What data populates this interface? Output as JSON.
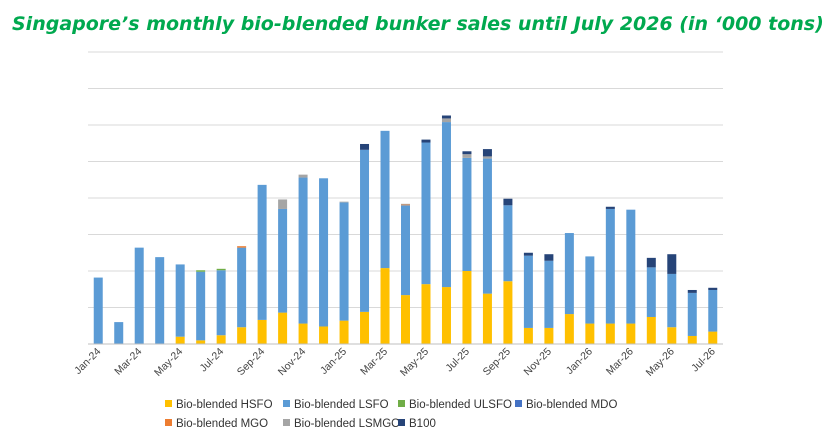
{
  "chart_data": {
    "type": "bar",
    "stacked": true,
    "title": "Singapore’s monthly bio-blended bunker sales until July 2026 (in ‘000 tons)",
    "xlabel": "",
    "ylabel": "",
    "ylim": [
      0,
      400
    ],
    "grid": true,
    "legend_position": "bottom",
    "categories": [
      "Jan-24",
      "Feb-24",
      "Mar-24",
      "Apr-24",
      "May-24",
      "Jun-24",
      "Jul-24",
      "Aug-24",
      "Sep-24",
      "Oct-24",
      "Nov-24",
      "Dec-24",
      "Jan-25",
      "Feb-25",
      "Mar-25",
      "Apr-25",
      "May-25",
      "Jun-25",
      "Jul-25",
      "Aug-25",
      "Sep-25",
      "Oct-25",
      "Nov-25",
      "Dec-25",
      "Jan-26",
      "Feb-26",
      "Mar-26",
      "Apr-26",
      "May-26",
      "Jun-26",
      "Jul-26"
    ],
    "tick_labels": [
      "Jan-24",
      "",
      "Mar-24",
      "",
      "May-24",
      "",
      "Jul-24",
      "",
      "Sep-24",
      "",
      "Nov-24",
      "",
      "Jan-25",
      "",
      "Mar-25",
      "",
      "May-25",
      "",
      "Jul-25",
      "",
      "Sep-25",
      "",
      "Nov-25",
      "",
      "Jan-26",
      "",
      "Mar-26",
      "",
      "May-26",
      "",
      "Jul-26"
    ],
    "series": [
      {
        "name": "Bio-blended HSFO",
        "color": "#ffc000",
        "values": [
          0,
          0,
          0,
          0,
          10,
          5,
          12,
          23,
          33,
          43,
          28,
          24,
          32,
          44,
          104,
          67,
          82,
          78,
          100,
          69,
          86,
          22,
          22,
          41,
          28,
          28,
          28,
          37,
          23,
          11,
          17
        ]
      },
      {
        "name": "Bio-blended LSFO",
        "color": "#5b9bd5",
        "values": [
          91,
          30,
          132,
          119,
          99,
          94,
          89,
          109,
          185,
          142,
          200,
          203,
          162,
          222,
          188,
          123,
          194,
          226,
          155,
          185,
          104,
          99,
          92,
          111,
          92,
          157,
          156,
          68,
          73,
          59,
          57
        ]
      },
      {
        "name": "Bio-blended ULSFO",
        "color": "#70ad47",
        "values": [
          0,
          0,
          0,
          0,
          0,
          2,
          2,
          0,
          0,
          0,
          0,
          0,
          0,
          0,
          0,
          0,
          0,
          0,
          0,
          0,
          0,
          0,
          0,
          0,
          0,
          0,
          0,
          0,
          0,
          0,
          0
        ]
      },
      {
        "name": "Bio-blended MDO",
        "color": "#4472c4",
        "values": [
          0,
          0,
          0,
          0,
          0,
          0,
          0,
          0,
          0,
          0,
          0,
          0,
          0,
          0,
          0,
          0,
          0,
          0,
          0,
          0,
          0,
          0,
          0,
          0,
          0,
          0,
          0,
          0,
          0,
          0,
          0
        ]
      },
      {
        "name": "Bio-blended MGO",
        "color": "#ed7d31",
        "values": [
          0,
          0,
          0,
          0,
          0,
          0,
          0,
          2,
          0,
          0,
          0,
          0,
          0,
          0,
          0,
          1,
          0,
          0,
          0,
          0,
          0,
          0,
          0,
          0,
          0,
          0,
          0,
          0,
          0,
          0,
          0
        ]
      },
      {
        "name": "Bio-blended LSMGO",
        "color": "#a5a5a5",
        "values": [
          0,
          0,
          0,
          0,
          0,
          0,
          0,
          0,
          0,
          13,
          4,
          0,
          1,
          0,
          0,
          1,
          0,
          5,
          5,
          3,
          0,
          0,
          0,
          0,
          0,
          0,
          0,
          0,
          0,
          0,
          0
        ]
      },
      {
        "name": "B100",
        "color": "#264478",
        "values": [
          0,
          0,
          0,
          0,
          0,
          0,
          0,
          0,
          0,
          0,
          0,
          0,
          0,
          8,
          0,
          0,
          4,
          4,
          4,
          10,
          9,
          4,
          9,
          0,
          0,
          3,
          0,
          13,
          27,
          4,
          3
        ]
      }
    ]
  }
}
